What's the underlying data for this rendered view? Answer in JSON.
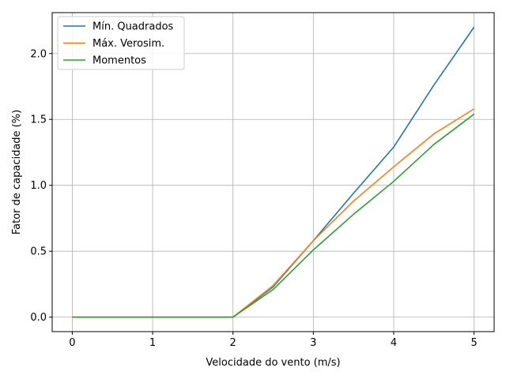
{
  "chart_data": {
    "type": "line",
    "title": "",
    "xlabel": "Velocidade do vento (m/s)",
    "ylabel": "Fator de capacidade (%)",
    "xlim": [
      -0.25,
      5.25
    ],
    "ylim": [
      -0.11,
      2.31
    ],
    "xticks": [
      0,
      1,
      2,
      3,
      4,
      5
    ],
    "xtick_labels": [
      "0",
      "1",
      "2",
      "3",
      "4",
      "5"
    ],
    "yticks": [
      0.0,
      0.5,
      1.0,
      1.5,
      2.0
    ],
    "ytick_labels": [
      "0.0",
      "0.5",
      "1.0",
      "1.5",
      "2.0"
    ],
    "grid": true,
    "legend_position": "top-left",
    "x": [
      0,
      0.5,
      1,
      1.5,
      2,
      2.5,
      3,
      3.5,
      4,
      4.5,
      5
    ],
    "series": [
      {
        "name": "Mín. Quadrados",
        "color": "#1f77b4",
        "values": [
          0,
          0,
          0,
          0,
          0,
          0.23,
          0.58,
          0.94,
          1.29,
          1.76,
          2.2
        ]
      },
      {
        "name": "Máx. Verosim.",
        "color": "#ff7f0e",
        "values": [
          0,
          0,
          0,
          0,
          0,
          0.24,
          0.58,
          0.88,
          1.14,
          1.39,
          1.58
        ]
      },
      {
        "name": "Momentos",
        "color": "#2ca02c",
        "values": [
          0,
          0,
          0,
          0,
          0,
          0.21,
          0.51,
          0.78,
          1.03,
          1.31,
          1.54
        ]
      }
    ]
  }
}
